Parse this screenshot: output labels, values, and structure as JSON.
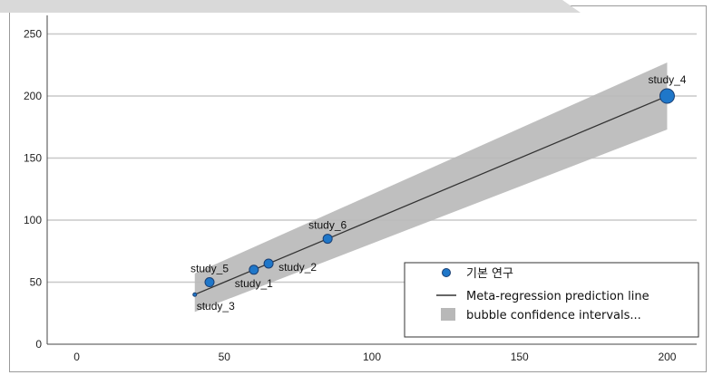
{
  "chart_data": {
    "type": "scatter",
    "title": "",
    "xlabel": "",
    "ylabel": "",
    "xlim": [
      -10,
      210
    ],
    "ylim": [
      0,
      265
    ],
    "xticks": [
      0,
      50,
      100,
      150,
      200
    ],
    "yticks": [
      0,
      50,
      100,
      150,
      200,
      250
    ],
    "grid": "horizontal",
    "legend_position": "bottom-right",
    "colors": {
      "point_fill": "#1f77c9",
      "point_stroke": "#1a3f73",
      "line": "#333333",
      "band": "#b8b8b8",
      "grid": "#c8c8c8"
    },
    "points": [
      {
        "label": "study_1",
        "x": 60,
        "y": 60,
        "size": 5,
        "label_pos": "below"
      },
      {
        "label": "study_2",
        "x": 65,
        "y": 65,
        "size": 5,
        "label_pos": "right"
      },
      {
        "label": "study_3",
        "x": 40,
        "y": 40,
        "size": 2,
        "label_pos": "below"
      },
      {
        "label": "study_4",
        "x": 200,
        "y": 200,
        "size": 8,
        "label_pos": "above"
      },
      {
        "label": "study_5",
        "x": 45,
        "y": 50,
        "size": 5,
        "label_pos": "above"
      },
      {
        "label": "study_6",
        "x": 85,
        "y": 85,
        "size": 5,
        "label_pos": "above"
      }
    ],
    "prediction_line": {
      "x": [
        40,
        200
      ],
      "y": [
        40,
        200
      ]
    },
    "confidence_band": {
      "x": [
        40,
        200
      ],
      "upper": [
        57,
        227
      ],
      "lower": [
        26,
        173
      ]
    },
    "legend": [
      {
        "label": "기본 연구",
        "kind": "point"
      },
      {
        "label": "Meta-regression prediction line",
        "kind": "line"
      },
      {
        "label": "bubble confidence intervals...",
        "kind": "band"
      }
    ]
  }
}
